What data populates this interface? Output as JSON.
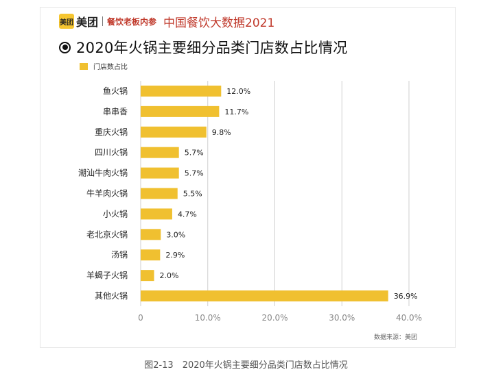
{
  "brand": {
    "logo_text": "美团",
    "name": "美团",
    "subtitle": "餐饮老板内参",
    "report_title": "中国餐饮大数据2021"
  },
  "chart_title": "2020年火锅主要细分品类门店数占比情况",
  "source": "数据来源：美团",
  "caption": "图2-13　2020年火锅主要细分品类门店数占比情况",
  "colors": {
    "bar": "#f0c030",
    "grid": "#cfcfcf",
    "accent": "#c0392b"
  },
  "chart_data": {
    "type": "bar",
    "orientation": "horizontal",
    "title": "2020年火锅主要细分品类门店数占比情况",
    "categories": [
      "鱼火锅",
      "串串香",
      "重庆火锅",
      "四川火锅",
      "潮汕牛肉火锅",
      "牛羊肉火锅",
      "小火锅",
      "老北京火锅",
      "汤锅",
      "羊蝎子火锅",
      "其他火锅"
    ],
    "series": [
      {
        "name": "门店数占比",
        "values": [
          12.0,
          11.7,
          9.8,
          5.7,
          5.7,
          5.5,
          4.7,
          3.0,
          2.9,
          2.0,
          36.9
        ],
        "labels": [
          "12.0%",
          "11.7%",
          "9.8%",
          "5.7%",
          "5.7%",
          "5.5%",
          "4.7%",
          "3.0%",
          "2.9%",
          "2.0%",
          "36.9%"
        ]
      }
    ],
    "xlim": [
      0,
      40
    ],
    "xticks": [
      0,
      10,
      20,
      30,
      40
    ],
    "xtick_labels": [
      "0",
      "10.0%",
      "20.0%",
      "30.0%",
      "40.0%"
    ],
    "grid": "vertical",
    "legend": "top-left"
  }
}
